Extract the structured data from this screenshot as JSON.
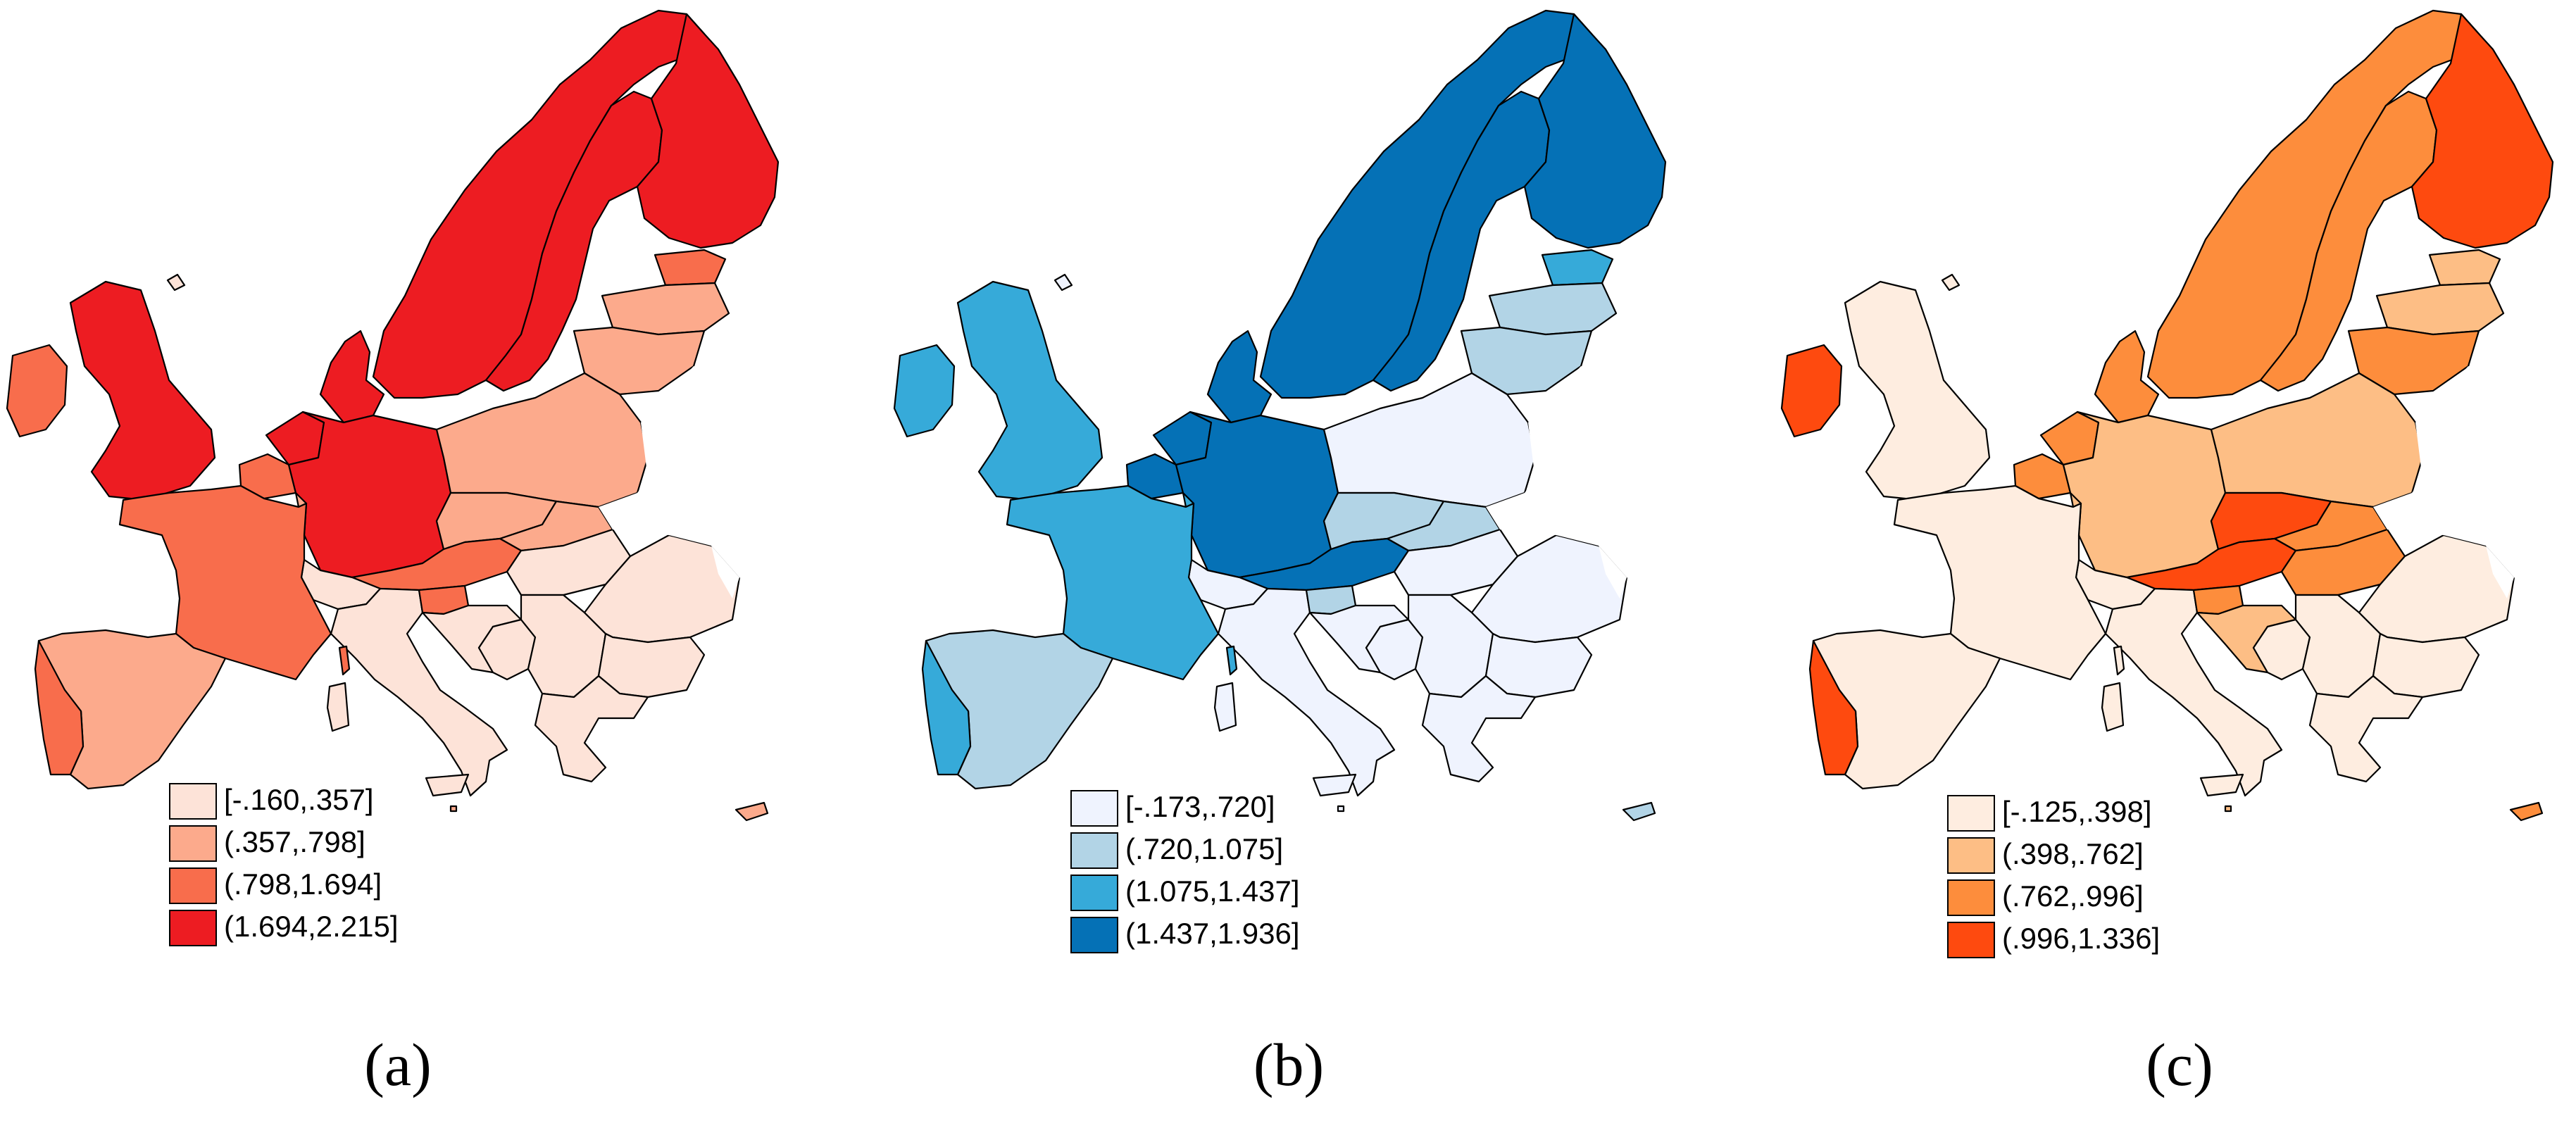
{
  "panels": [
    {
      "id": "a",
      "caption": "(a)",
      "palette": [
        "#fde3d8",
        "#fcaa8c",
        "#f86d4c",
        "#ed1c22"
      ],
      "legend": [
        "[-.160,.357]",
        "(.357,.798]",
        "(.798,1.694]",
        "(1.694,2.215]"
      ],
      "classes": {
        "ice": 0,
        "nor": 3,
        "swe": 3,
        "fin": 3,
        "est": 2,
        "lva": 1,
        "ltu": 1,
        "irl": 2,
        "gbr": 3,
        "nld": 3,
        "bel": 2,
        "lux": 1,
        "dnk": 3,
        "deu": 3,
        "pol": 1,
        "cze": 1,
        "svk": 1,
        "aut": 2,
        "hun": 0,
        "che": 0,
        "fra": 2,
        "esp": 1,
        "prt": 2,
        "ita": 0,
        "svn": 2,
        "hrv": 0,
        "bih": 0,
        "srb": 0,
        "rou": 0,
        "bgr": 0,
        "grc": 0,
        "cor": 2,
        "sar": 0,
        "sic": 0,
        "mlt": 1,
        "cyp": 1,
        "blr": 0,
        "ukr": 0,
        "mda": 0
      }
    },
    {
      "id": "b",
      "caption": "(b)",
      "palette": [
        "#eff3fe",
        "#b2d4e6",
        "#36aad9",
        "#0571b6"
      ],
      "legend": [
        "[-.173,.720]",
        "(.720,1.075]",
        "(1.075,1.437]",
        "(1.437,1.936]"
      ],
      "classes": {
        "ice": 0,
        "nor": 3,
        "swe": 3,
        "fin": 3,
        "est": 2,
        "lva": 1,
        "ltu": 1,
        "irl": 2,
        "gbr": 2,
        "nld": 3,
        "bel": 3,
        "lux": 2,
        "dnk": 3,
        "deu": 3,
        "pol": 0,
        "cze": 1,
        "svk": 1,
        "aut": 3,
        "hun": 0,
        "che": 0,
        "fra": 2,
        "esp": 1,
        "prt": 2,
        "ita": 0,
        "svn": 1,
        "hrv": 0,
        "bih": 0,
        "srb": 0,
        "rou": 0,
        "bgr": 0,
        "grc": 0,
        "cor": 2,
        "sar": 0,
        "sic": 0,
        "mlt": 0,
        "cyp": 1,
        "blr": 0,
        "ukr": 0,
        "mda": 0
      }
    },
    {
      "id": "c",
      "caption": "(c)",
      "palette": [
        "#feede0",
        "#fdbe85",
        "#fd8d3c",
        "#fe4a0f"
      ],
      "legend": [
        "[-.125,.398]",
        "(.398,.762]",
        "(.762,.996]",
        "(.996,1.336]"
      ],
      "classes": {
        "ice": 0,
        "nor": 2,
        "swe": 2,
        "fin": 3,
        "est": 1,
        "lva": 1,
        "ltu": 2,
        "irl": 3,
        "gbr": 0,
        "nld": 2,
        "bel": 2,
        "lux": 1,
        "dnk": 2,
        "deu": 1,
        "pol": 1,
        "cze": 3,
        "svk": 2,
        "aut": 3,
        "hun": 2,
        "che": 0,
        "fra": 0,
        "esp": 0,
        "prt": 3,
        "ita": 0,
        "svn": 2,
        "hrv": 1,
        "bih": 0,
        "srb": 0,
        "rou": 0,
        "bgr": 0,
        "grc": 0,
        "cor": 0,
        "sar": 0,
        "sic": 0,
        "mlt": 1,
        "cyp": 2,
        "blr": 0,
        "ukr": 0,
        "mda": 0
      }
    }
  ]
}
